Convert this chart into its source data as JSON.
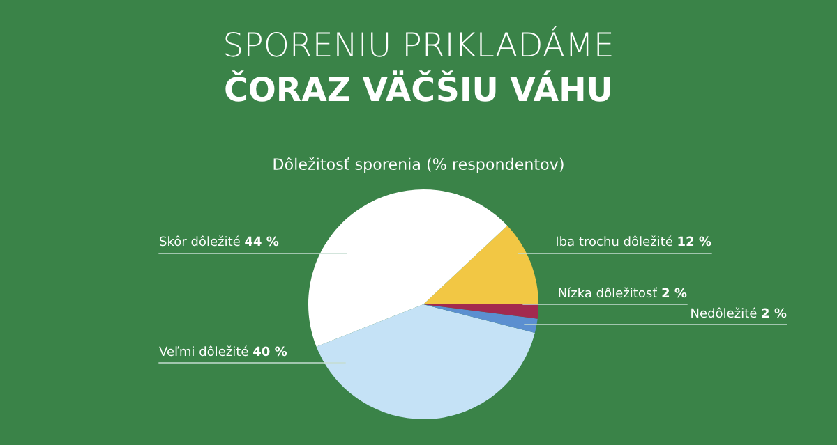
{
  "chart_data": {
    "type": "pie",
    "title": "SPORENIU PRIKLADÁME",
    "subtitle": "ČORAZ VÄČŠIU VÁHU",
    "annotations": [
      "Dôležitosť sporenia (% respondentov)"
    ],
    "categories": [
      "Iba trochu dôležité",
      "Skôr dôležité",
      "Veľmi dôležité",
      "Nedôležité",
      "Nízka dôležitosť"
    ],
    "values": [
      12,
      44,
      40,
      2,
      2
    ],
    "value_labels": [
      "12 %",
      "44 %",
      "40 %",
      "2 %",
      "2 %"
    ],
    "colors": [
      "#f2c744",
      "#ffffff",
      "#c5e2f6",
      "#5b8fd0",
      "#a3294f"
    ]
  }
}
